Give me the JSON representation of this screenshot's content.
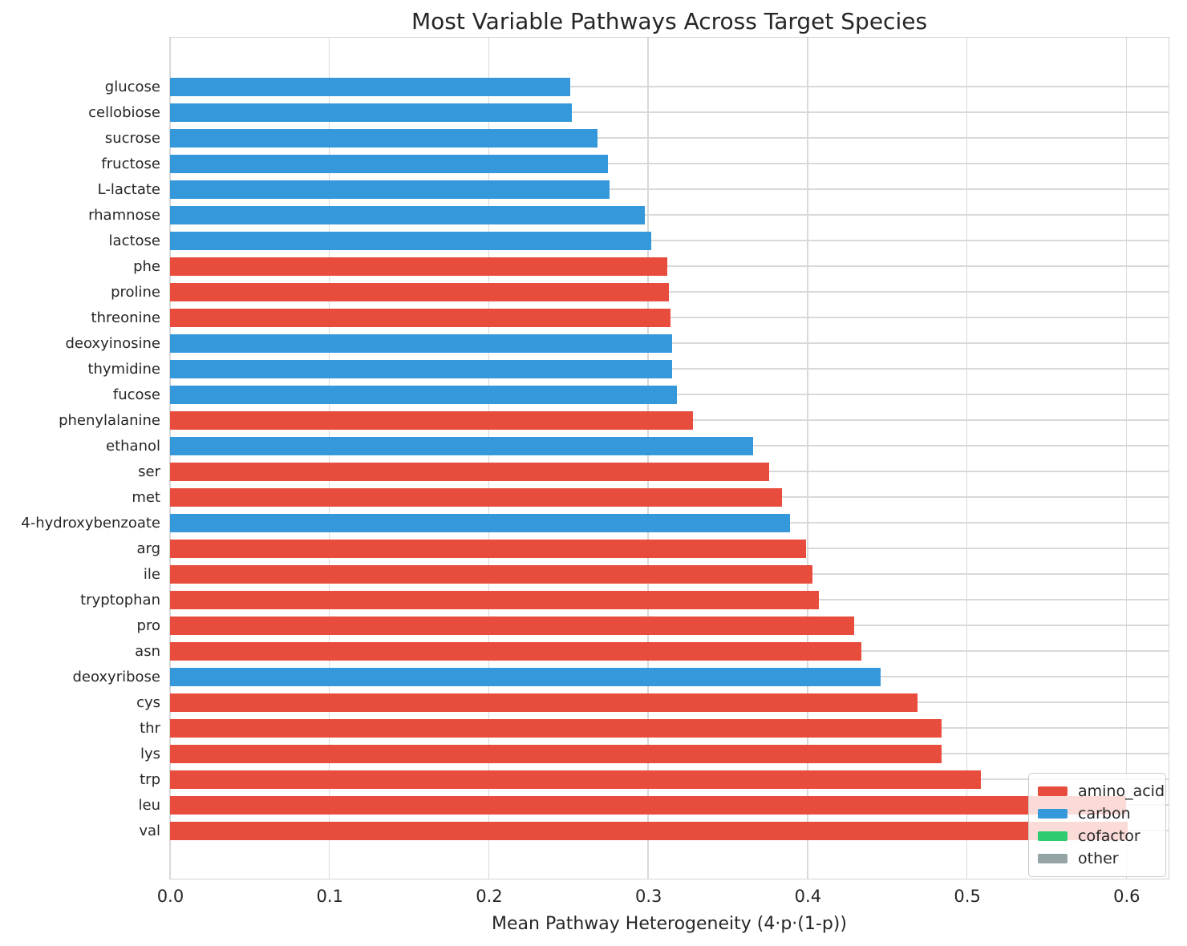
{
  "chart_data": {
    "type": "bar",
    "orientation": "horizontal",
    "title": "Most Variable Pathways Across Target Species",
    "xlabel": "Mean Pathway Heterogeneity (4·p·(1-p))",
    "xlim": [
      0,
      0.626
    ],
    "x_tick_values": [
      0.0,
      0.1,
      0.2,
      0.3,
      0.4,
      0.5,
      0.6
    ],
    "x_tick_labels": [
      "0.0",
      "0.1",
      "0.2",
      "0.3",
      "0.4",
      "0.5",
      "0.6"
    ],
    "grid": true,
    "legend": {
      "position": "lower right",
      "entries": [
        {
          "label": "amino_acid",
          "color": "#e74c3c"
        },
        {
          "label": "carbon",
          "color": "#3498db"
        },
        {
          "label": "cofactor",
          "color": "#2ecc71"
        },
        {
          "label": "other",
          "color": "#95a5a6"
        }
      ]
    },
    "group_colors": {
      "amino_acid": "#e74c3c",
      "carbon": "#3498db",
      "cofactor": "#2ecc71",
      "other": "#95a5a6"
    },
    "bars": [
      {
        "label": "glucose",
        "value": 0.251,
        "group": "carbon"
      },
      {
        "label": "cellobiose",
        "value": 0.252,
        "group": "carbon"
      },
      {
        "label": "sucrose",
        "value": 0.268,
        "group": "carbon"
      },
      {
        "label": "fructose",
        "value": 0.275,
        "group": "carbon"
      },
      {
        "label": "L-lactate",
        "value": 0.276,
        "group": "carbon"
      },
      {
        "label": "rhamnose",
        "value": 0.298,
        "group": "carbon"
      },
      {
        "label": "lactose",
        "value": 0.302,
        "group": "carbon"
      },
      {
        "label": "phe",
        "value": 0.312,
        "group": "amino_acid"
      },
      {
        "label": "proline",
        "value": 0.313,
        "group": "amino_acid"
      },
      {
        "label": "threonine",
        "value": 0.314,
        "group": "amino_acid"
      },
      {
        "label": "deoxyinosine",
        "value": 0.315,
        "group": "carbon"
      },
      {
        "label": "thymidine",
        "value": 0.315,
        "group": "carbon"
      },
      {
        "label": "fucose",
        "value": 0.318,
        "group": "carbon"
      },
      {
        "label": "phenylalanine",
        "value": 0.328,
        "group": "amino_acid"
      },
      {
        "label": "ethanol",
        "value": 0.366,
        "group": "carbon"
      },
      {
        "label": "ser",
        "value": 0.376,
        "group": "amino_acid"
      },
      {
        "label": "met",
        "value": 0.384,
        "group": "amino_acid"
      },
      {
        "label": "4-hydroxybenzoate",
        "value": 0.389,
        "group": "carbon"
      },
      {
        "label": "arg",
        "value": 0.399,
        "group": "amino_acid"
      },
      {
        "label": "ile",
        "value": 0.403,
        "group": "amino_acid"
      },
      {
        "label": "tryptophan",
        "value": 0.407,
        "group": "amino_acid"
      },
      {
        "label": "pro",
        "value": 0.429,
        "group": "amino_acid"
      },
      {
        "label": "asn",
        "value": 0.434,
        "group": "amino_acid"
      },
      {
        "label": "deoxyribose",
        "value": 0.446,
        "group": "carbon"
      },
      {
        "label": "cys",
        "value": 0.469,
        "group": "amino_acid"
      },
      {
        "label": "thr",
        "value": 0.484,
        "group": "amino_acid"
      },
      {
        "label": "lys",
        "value": 0.484,
        "group": "amino_acid"
      },
      {
        "label": "trp",
        "value": 0.509,
        "group": "amino_acid"
      },
      {
        "label": "leu",
        "value": 0.6,
        "group": "amino_acid"
      },
      {
        "label": "val",
        "value": 0.601,
        "group": "amino_acid"
      }
    ]
  }
}
